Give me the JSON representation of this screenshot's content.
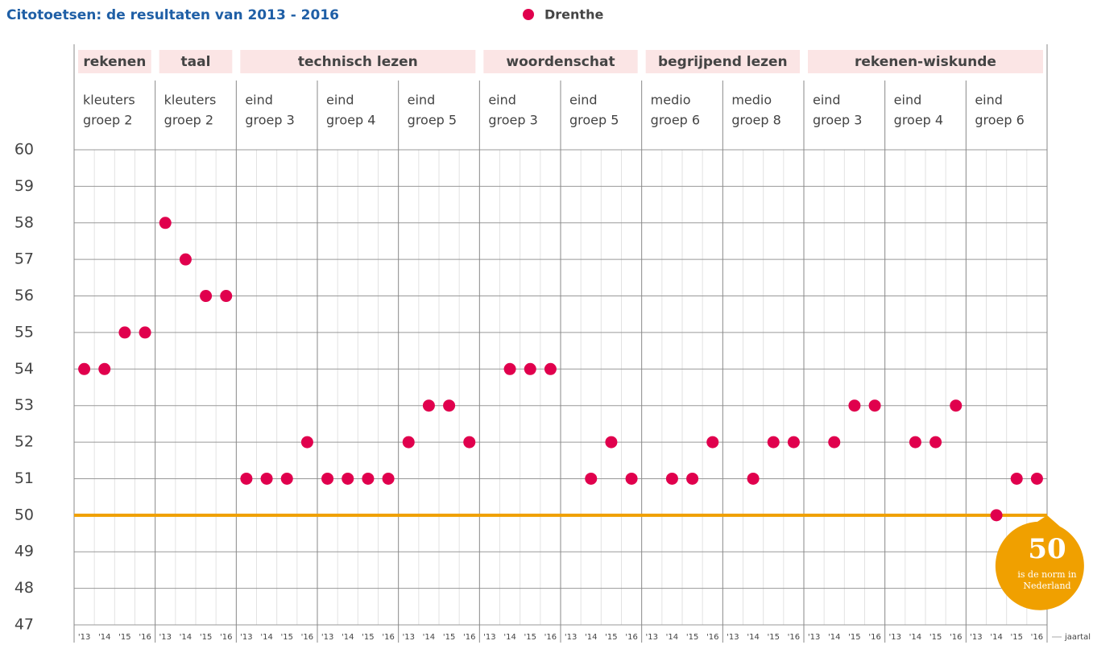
{
  "chart_data": {
    "type": "dot",
    "title": "Citotoetsen: de resultaten van 2013 - 2016",
    "series": [
      {
        "name": "Drenthe",
        "color": "#e0004d",
        "values": [
          54,
          54,
          55,
          55,
          58,
          57,
          56,
          56,
          51,
          51,
          51,
          52,
          51,
          51,
          51,
          51,
          52,
          53,
          53,
          52,
          null,
          54,
          54,
          54,
          null,
          51,
          52,
          51,
          null,
          51,
          51,
          52,
          null,
          51,
          52,
          52,
          null,
          52,
          53,
          53,
          null,
          52,
          52,
          53,
          null,
          50,
          51,
          51
        ]
      }
    ],
    "categories": [
      "'13",
      "'14",
      "'15",
      "'16",
      "'13",
      "'14",
      "'15",
      "'16",
      "'13",
      "'14",
      "'15",
      "'16",
      "'13",
      "'14",
      "'15",
      "'16",
      "'13",
      "'14",
      "'15",
      "'16",
      "'13",
      "'14",
      "'15",
      "'16",
      "'13",
      "'14",
      "'15",
      "'16",
      "'13",
      "'14",
      "'15",
      "'16",
      "'13",
      "'14",
      "'15",
      "'16",
      "'13",
      "'14",
      "'15",
      "'16",
      "'13",
      "'14",
      "'15",
      "'16",
      "'13",
      "'14",
      "'15",
      "'16"
    ],
    "sections": [
      {
        "name": "rekenen",
        "groups": [
          [
            "kleuters",
            "groep 2"
          ]
        ]
      },
      {
        "name": "taal",
        "groups": [
          [
            "kleuters",
            "groep 2"
          ]
        ]
      },
      {
        "name": "technisch lezen",
        "groups": [
          [
            "eind",
            "groep 3"
          ],
          [
            "eind",
            "groep 4"
          ],
          [
            "eind",
            "groep 5"
          ]
        ]
      },
      {
        "name": "woordenschat",
        "groups": [
          [
            "eind",
            "groep 3"
          ],
          [
            "eind",
            "groep 5"
          ]
        ]
      },
      {
        "name": "begrijpend lezen",
        "groups": [
          [
            "medio",
            "groep 6"
          ],
          [
            "medio",
            "groep 8"
          ]
        ]
      },
      {
        "name": "rekenen-wiskunde",
        "groups": [
          [
            "eind",
            "groep 3"
          ],
          [
            "eind",
            "groep 4"
          ],
          [
            "eind",
            "groep 6"
          ]
        ]
      }
    ],
    "ylim": [
      47,
      60
    ],
    "yticks": [
      47,
      48,
      49,
      50,
      51,
      52,
      53,
      54,
      55,
      56,
      57,
      58,
      59,
      60
    ],
    "grid": true,
    "x_axis_label": "jaartal",
    "norm": {
      "value": 50,
      "color": "#f0a000",
      "text": [
        "is de norm in",
        "Nederland"
      ]
    }
  }
}
